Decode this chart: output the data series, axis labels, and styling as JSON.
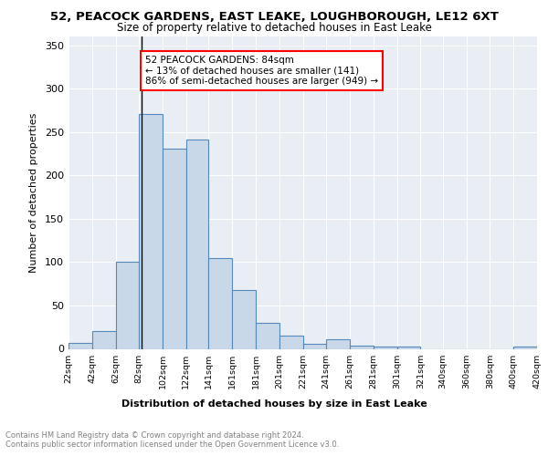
{
  "title1": "52, PEACOCK GARDENS, EAST LEAKE, LOUGHBOROUGH, LE12 6XT",
  "title2": "Size of property relative to detached houses in East Leake",
  "xlabel": "Distribution of detached houses by size in East Leake",
  "ylabel": "Number of detached properties",
  "bar_color": "#c8d8e8",
  "bar_edge_color": "#5588bb",
  "bins": [
    22,
    42,
    62,
    82,
    102,
    122,
    141,
    161,
    181,
    201,
    221,
    241,
    261,
    281,
    301,
    321,
    340,
    360,
    380,
    400,
    420
  ],
  "counts": [
    7,
    20,
    100,
    271,
    231,
    241,
    105,
    68,
    30,
    15,
    6,
    11,
    4,
    3,
    3,
    0,
    0,
    0,
    0,
    3
  ],
  "tick_labels": [
    "22sqm",
    "42sqm",
    "62sqm",
    "82sqm",
    "102sqm",
    "122sqm",
    "141sqm",
    "161sqm",
    "181sqm",
    "201sqm",
    "221sqm",
    "241sqm",
    "261sqm",
    "281sqm",
    "301sqm",
    "321sqm",
    "340sqm",
    "360sqm",
    "380sqm",
    "400sqm",
    "420sqm"
  ],
  "property_size": 84,
  "annotation_text": "52 PEACOCK GARDENS: 84sqm\n← 13% of detached houses are smaller (141)\n86% of semi-detached houses are larger (949) →",
  "vline_x": 84,
  "ylim": [
    0,
    360
  ],
  "yticks": [
    0,
    50,
    100,
    150,
    200,
    250,
    300,
    350
  ],
  "footer1": "Contains HM Land Registry data © Crown copyright and database right 2024.",
  "footer2": "Contains public sector information licensed under the Open Government Licence v3.0.",
  "plot_bg_color": "#e8eef4"
}
